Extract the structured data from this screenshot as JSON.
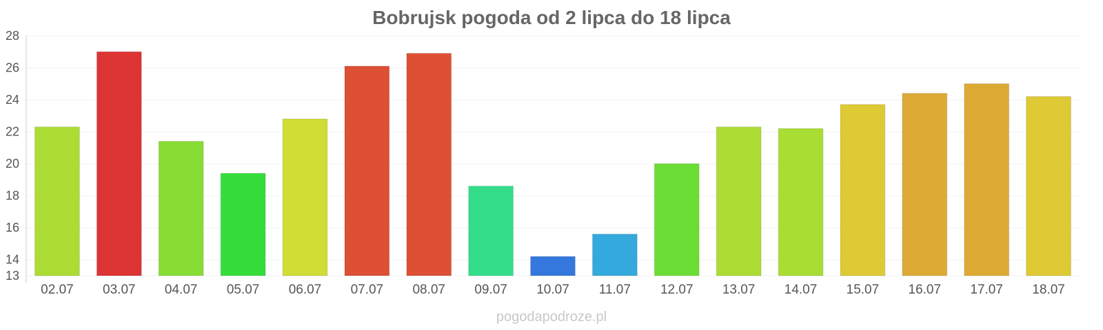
{
  "chart_data": {
    "type": "bar",
    "title": "Bobrujsk pogoda od 2 lipca do 18 lipca",
    "xlabel": "",
    "ylabel": "",
    "ylim": [
      13,
      28
    ],
    "yticks": [
      13,
      14,
      16,
      18,
      20,
      22,
      24,
      26,
      28
    ],
    "grid": true,
    "categories": [
      "02.07",
      "03.07",
      "04.07",
      "05.07",
      "06.07",
      "07.07",
      "08.07",
      "09.07",
      "10.07",
      "11.07",
      "12.07",
      "13.07",
      "14.07",
      "15.07",
      "16.07",
      "17.07",
      "18.07"
    ],
    "values": [
      22.3,
      27.0,
      21.4,
      19.4,
      22.8,
      26.1,
      26.9,
      18.6,
      14.2,
      15.6,
      20.0,
      22.3,
      22.2,
      23.7,
      24.4,
      25.0,
      24.2
    ],
    "colors": [
      "#addd34",
      "#dd3434",
      "#87dd34",
      "#34dd3a",
      "#cfdd34",
      "#dd5034",
      "#dd5034",
      "#34dd8a",
      "#3478dd",
      "#34a9dd",
      "#6cdd34",
      "#addd34",
      "#a9dd34",
      "#ddca34",
      "#ddaa34",
      "#ddaa34",
      "#ddca34"
    ]
  },
  "watermark": "pogodapodroze.pl"
}
